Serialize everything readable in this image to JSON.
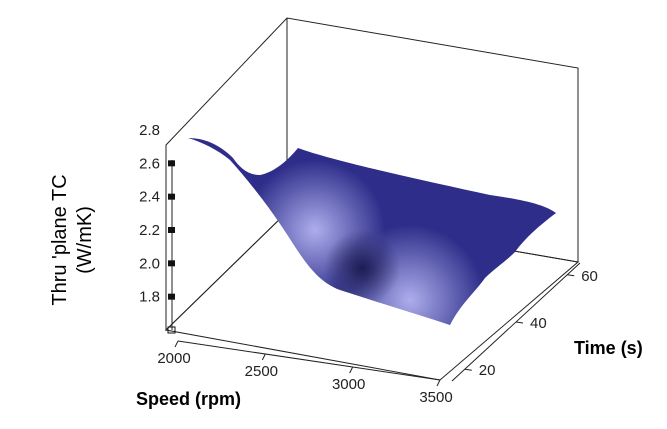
{
  "chart_data": {
    "type": "surface",
    "title": "",
    "xlabel": "Speed (rpm)",
    "ylabel": "Time (s)",
    "zlabel_lines": [
      "Thru 'plane TC",
      "(W/mK)"
    ],
    "x_ticks": [
      "2000",
      "2500",
      "3000",
      "3500"
    ],
    "y_ticks": [
      "20",
      "40",
      "60"
    ],
    "z_ticks": [
      "1.8",
      "2.0",
      "2.2",
      "2.4",
      "2.6",
      "2.8"
    ],
    "xlim": [
      2000,
      3500
    ],
    "ylim": [
      15,
      65
    ],
    "zlim": [
      1.6,
      2.8
    ],
    "surface_color": "#2e2e8a",
    "highlight_color": "#b4b4f2",
    "grid_x": [
      2000,
      2500,
      3000,
      3500
    ],
    "grid_y": [
      20,
      40,
      60
    ],
    "z_values": [
      [
        2.62,
        2.58,
        2.55
      ],
      [
        2.05,
        1.95,
        2.42
      ],
      [
        1.82,
        2.05,
        2.45
      ],
      [
        1.72,
        1.78,
        2.36
      ]
    ]
  }
}
